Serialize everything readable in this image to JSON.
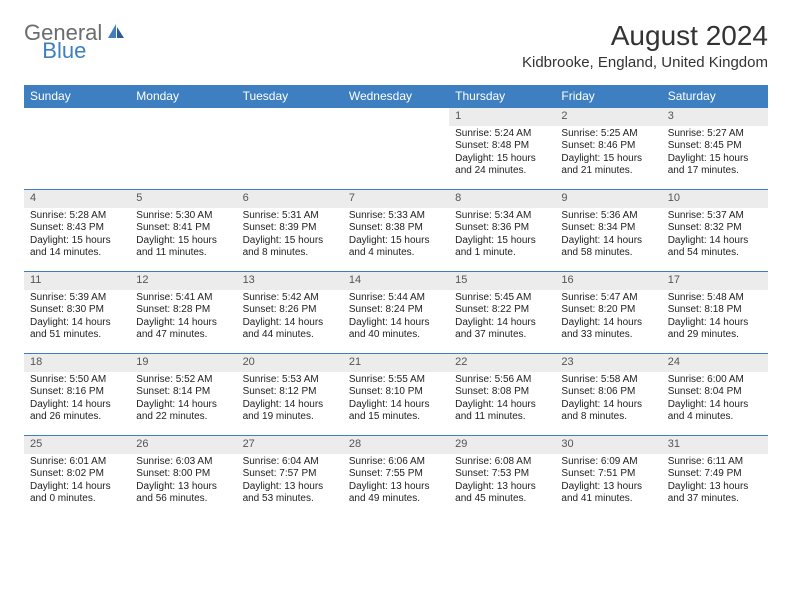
{
  "logo": {
    "text1": "General",
    "text2": "Blue"
  },
  "title": "August 2024",
  "location": "Kidbrooke, England, United Kingdom",
  "colors": {
    "header_bg": "#3e7fc1",
    "daynum_bg": "#ececec",
    "logo_gray": "#6a6c6e",
    "logo_blue": "#3e7fc1"
  },
  "weekdays": [
    "Sunday",
    "Monday",
    "Tuesday",
    "Wednesday",
    "Thursday",
    "Friday",
    "Saturday"
  ],
  "leading_blanks": 4,
  "days": [
    {
      "n": "1",
      "sr": "5:24 AM",
      "ss": "8:48 PM",
      "dl": "15 hours and 24 minutes."
    },
    {
      "n": "2",
      "sr": "5:25 AM",
      "ss": "8:46 PM",
      "dl": "15 hours and 21 minutes."
    },
    {
      "n": "3",
      "sr": "5:27 AM",
      "ss": "8:45 PM",
      "dl": "15 hours and 17 minutes."
    },
    {
      "n": "4",
      "sr": "5:28 AM",
      "ss": "8:43 PM",
      "dl": "15 hours and 14 minutes."
    },
    {
      "n": "5",
      "sr": "5:30 AM",
      "ss": "8:41 PM",
      "dl": "15 hours and 11 minutes."
    },
    {
      "n": "6",
      "sr": "5:31 AM",
      "ss": "8:39 PM",
      "dl": "15 hours and 8 minutes."
    },
    {
      "n": "7",
      "sr": "5:33 AM",
      "ss": "8:38 PM",
      "dl": "15 hours and 4 minutes."
    },
    {
      "n": "8",
      "sr": "5:34 AM",
      "ss": "8:36 PM",
      "dl": "15 hours and 1 minute."
    },
    {
      "n": "9",
      "sr": "5:36 AM",
      "ss": "8:34 PM",
      "dl": "14 hours and 58 minutes."
    },
    {
      "n": "10",
      "sr": "5:37 AM",
      "ss": "8:32 PM",
      "dl": "14 hours and 54 minutes."
    },
    {
      "n": "11",
      "sr": "5:39 AM",
      "ss": "8:30 PM",
      "dl": "14 hours and 51 minutes."
    },
    {
      "n": "12",
      "sr": "5:41 AM",
      "ss": "8:28 PM",
      "dl": "14 hours and 47 minutes."
    },
    {
      "n": "13",
      "sr": "5:42 AM",
      "ss": "8:26 PM",
      "dl": "14 hours and 44 minutes."
    },
    {
      "n": "14",
      "sr": "5:44 AM",
      "ss": "8:24 PM",
      "dl": "14 hours and 40 minutes."
    },
    {
      "n": "15",
      "sr": "5:45 AM",
      "ss": "8:22 PM",
      "dl": "14 hours and 37 minutes."
    },
    {
      "n": "16",
      "sr": "5:47 AM",
      "ss": "8:20 PM",
      "dl": "14 hours and 33 minutes."
    },
    {
      "n": "17",
      "sr": "5:48 AM",
      "ss": "8:18 PM",
      "dl": "14 hours and 29 minutes."
    },
    {
      "n": "18",
      "sr": "5:50 AM",
      "ss": "8:16 PM",
      "dl": "14 hours and 26 minutes."
    },
    {
      "n": "19",
      "sr": "5:52 AM",
      "ss": "8:14 PM",
      "dl": "14 hours and 22 minutes."
    },
    {
      "n": "20",
      "sr": "5:53 AM",
      "ss": "8:12 PM",
      "dl": "14 hours and 19 minutes."
    },
    {
      "n": "21",
      "sr": "5:55 AM",
      "ss": "8:10 PM",
      "dl": "14 hours and 15 minutes."
    },
    {
      "n": "22",
      "sr": "5:56 AM",
      "ss": "8:08 PM",
      "dl": "14 hours and 11 minutes."
    },
    {
      "n": "23",
      "sr": "5:58 AM",
      "ss": "8:06 PM",
      "dl": "14 hours and 8 minutes."
    },
    {
      "n": "24",
      "sr": "6:00 AM",
      "ss": "8:04 PM",
      "dl": "14 hours and 4 minutes."
    },
    {
      "n": "25",
      "sr": "6:01 AM",
      "ss": "8:02 PM",
      "dl": "14 hours and 0 minutes."
    },
    {
      "n": "26",
      "sr": "6:03 AM",
      "ss": "8:00 PM",
      "dl": "13 hours and 56 minutes."
    },
    {
      "n": "27",
      "sr": "6:04 AM",
      "ss": "7:57 PM",
      "dl": "13 hours and 53 minutes."
    },
    {
      "n": "28",
      "sr": "6:06 AM",
      "ss": "7:55 PM",
      "dl": "13 hours and 49 minutes."
    },
    {
      "n": "29",
      "sr": "6:08 AM",
      "ss": "7:53 PM",
      "dl": "13 hours and 45 minutes."
    },
    {
      "n": "30",
      "sr": "6:09 AM",
      "ss": "7:51 PM",
      "dl": "13 hours and 41 minutes."
    },
    {
      "n": "31",
      "sr": "6:11 AM",
      "ss": "7:49 PM",
      "dl": "13 hours and 37 minutes."
    }
  ],
  "labels": {
    "sunrise": "Sunrise:",
    "sunset": "Sunset:",
    "daylight": "Daylight:"
  }
}
